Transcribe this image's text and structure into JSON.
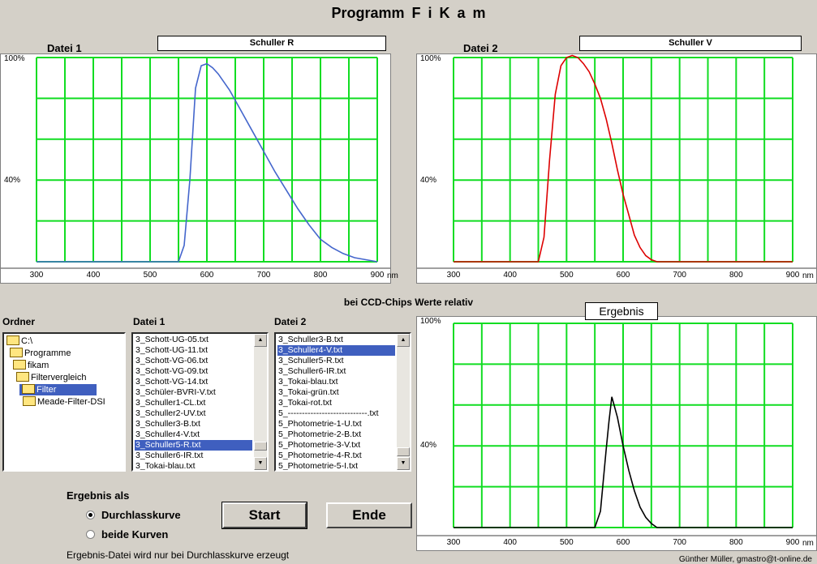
{
  "app_title": "Programm    F i  K a m",
  "chart1": {
    "file_label": "Datei 1",
    "filter_name": "Schuller R",
    "y_top_label": "100%",
    "y_mid_label": "40%",
    "x_ticks": [
      "300",
      "400",
      "500",
      "600",
      "700",
      "800",
      "900"
    ],
    "x_unit": "nm",
    "line_color": "#4466cc"
  },
  "chart2": {
    "file_label": "Datei 2",
    "filter_name": "Schuller V",
    "y_top_label": "100%",
    "y_mid_label": "40%",
    "x_ticks": [
      "300",
      "400",
      "500",
      "600",
      "700",
      "800",
      "900"
    ],
    "x_unit": "nm",
    "line_color": "#dd0000"
  },
  "result_chart": {
    "title": "Ergebnis",
    "y_top_label": "100%",
    "y_mid_label": "40%",
    "x_ticks": [
      "300",
      "400",
      "500",
      "600",
      "700",
      "800",
      "900"
    ],
    "x_unit": "nm",
    "line_color": "#000000"
  },
  "relative_note": "bei CCD-Chips Werte relativ",
  "folder_panel": {
    "heading": "Ordner",
    "items": [
      {
        "label": "C:\\",
        "indent": 0,
        "selected": false
      },
      {
        "label": "Programme",
        "indent": 1,
        "selected": false
      },
      {
        "label": "fikam",
        "indent": 2,
        "selected": false
      },
      {
        "label": "Filtervergleich",
        "indent": 3,
        "selected": false
      },
      {
        "label": "Filter",
        "indent": 4,
        "selected": true
      },
      {
        "label": "Meade-Filter-DSI",
        "indent": 5,
        "selected": false
      }
    ]
  },
  "file1_list": {
    "heading": "Datei 1",
    "items": [
      "3_Schott-UG-05.txt",
      "3_Schott-UG-11.txt",
      "3_Schott-VG-06.txt",
      "3_Schott-VG-09.txt",
      "3_Schott-VG-14.txt",
      "3_Schüler-BVRI-V.txt",
      "3_Schuller1-CL.txt",
      "3_Schuller2-UV.txt",
      "3_Schuller3-B.txt",
      "3_Schuller4-V.txt",
      "3_Schuller5-R.txt",
      "3_Schuller6-IR.txt",
      "3_Tokai-blau.txt"
    ],
    "selected_index": 10
  },
  "file2_list": {
    "heading": "Datei 2",
    "items": [
      "3_Schuller3-B.txt",
      "3_Schuller4-V.txt",
      "3_Schuller5-R.txt",
      "3_Schuller6-IR.txt",
      "3_Tokai-blau.txt",
      "3_Tokai-grün.txt",
      "3_Tokai-rot.txt",
      "5_----------------------------.txt",
      "5_Photometrie-1-U.txt",
      "5_Photometrie-2-B.txt",
      "5_Photometrie-3-V.txt",
      "5_Photometrie-4-R.txt",
      "5_Photometrie-5-I.txt"
    ],
    "selected_index": 1
  },
  "options": {
    "heading": "Ergebnis als",
    "radio_transmission": "Durchlasskurve",
    "radio_both": "beide Kurven",
    "selected": "Durchlasskurve"
  },
  "buttons": {
    "start": "Start",
    "end": "Ende"
  },
  "footer_note": "Ergebnis-Datei wird nur bei Durchlasskurve erzeugt",
  "copyright": "Günther Müller, gmastro@t-online.de",
  "chart_data": [
    {
      "type": "line",
      "title": "Schuller R",
      "xlabel": "nm",
      "ylabel": "",
      "xlim": [
        300,
        900
      ],
      "ylim": [
        0,
        100
      ],
      "grid": true,
      "series": [
        {
          "name": "Schuller R",
          "x": [
            300,
            550,
            560,
            570,
            580,
            590,
            600,
            610,
            620,
            640,
            660,
            680,
            700,
            720,
            740,
            760,
            780,
            800,
            820,
            840,
            860,
            880,
            900
          ],
          "y": [
            0,
            0,
            8,
            40,
            85,
            96,
            97,
            95,
            92,
            84,
            74,
            64,
            54,
            44,
            35,
            26,
            18,
            11,
            7,
            4,
            2,
            1,
            0
          ]
        }
      ]
    },
    {
      "type": "line",
      "title": "Schuller V",
      "xlabel": "nm",
      "ylabel": "",
      "xlim": [
        300,
        900
      ],
      "ylim": [
        0,
        100
      ],
      "grid": true,
      "series": [
        {
          "name": "Schuller V",
          "x": [
            300,
            450,
            460,
            470,
            480,
            490,
            500,
            510,
            520,
            530,
            540,
            550,
            560,
            570,
            580,
            590,
            600,
            610,
            620,
            630,
            640,
            650,
            660,
            670,
            900
          ],
          "y": [
            0,
            0,
            12,
            50,
            82,
            96,
            100,
            101,
            100,
            97,
            93,
            87,
            80,
            70,
            58,
            45,
            33,
            23,
            13,
            7,
            3,
            1,
            0,
            0,
            0
          ]
        }
      ]
    },
    {
      "type": "line",
      "title": "Ergebnis",
      "xlabel": "nm",
      "ylabel": "",
      "xlim": [
        300,
        900
      ],
      "ylim": [
        0,
        100
      ],
      "grid": true,
      "series": [
        {
          "name": "Ergebnis",
          "x": [
            300,
            550,
            560,
            570,
            575,
            580,
            590,
            600,
            610,
            620,
            630,
            640,
            650,
            660,
            900
          ],
          "y": [
            0,
            0,
            8,
            38,
            52,
            64,
            54,
            40,
            28,
            18,
            10,
            5,
            2,
            0,
            0
          ]
        }
      ]
    }
  ]
}
